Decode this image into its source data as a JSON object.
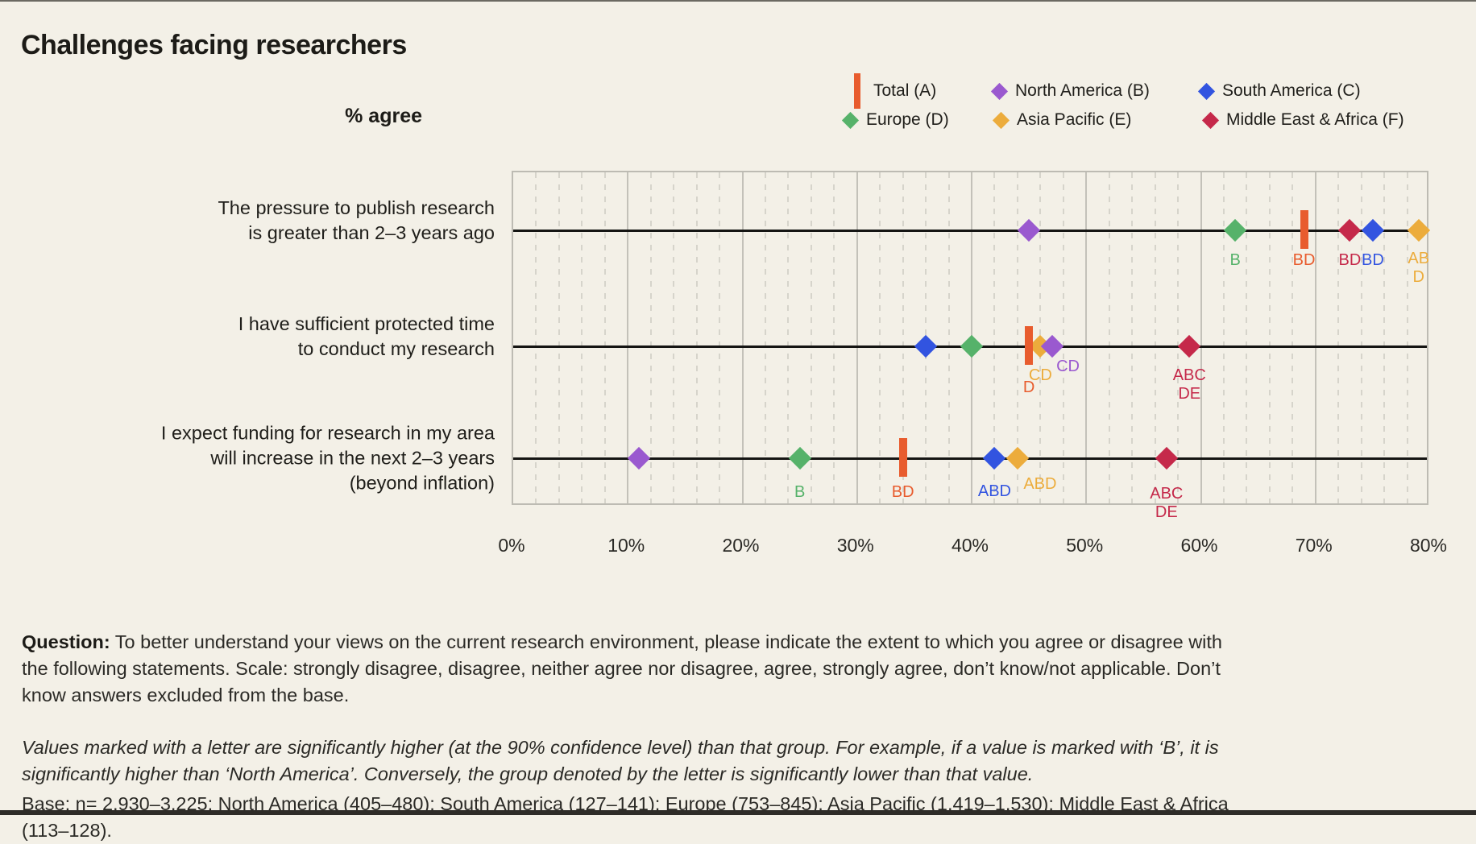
{
  "title": "Challenges facing researchers",
  "axis_label": "% agree",
  "chart_data": {
    "type": "dot_plot",
    "unit": "percent agree",
    "xlim": [
      0,
      80
    ],
    "xticks": [
      "0%",
      "10%",
      "20%",
      "30%",
      "40%",
      "50%",
      "60%",
      "70%",
      "80%"
    ],
    "grid": {
      "solid_every": 10,
      "dashed_every": 2
    },
    "legend_position": "top-right",
    "groups": [
      {
        "id": "A",
        "label": "Total (A)",
        "color": "#e85c2e",
        "marker": "bar"
      },
      {
        "id": "B",
        "label": "North America (B)",
        "color": "#9a59cf",
        "marker": "diamond"
      },
      {
        "id": "C",
        "label": "South America (C)",
        "color": "#3254e0",
        "marker": "diamond"
      },
      {
        "id": "D",
        "label": "Europe (D)",
        "color": "#56b26a",
        "marker": "diamond"
      },
      {
        "id": "E",
        "label": "Asia Pacific (E)",
        "color": "#ecac3c",
        "marker": "diamond"
      },
      {
        "id": "F",
        "label": "Middle East & Africa (F)",
        "color": "#c5294a",
        "marker": "diamond"
      }
    ],
    "rows": [
      {
        "label": "The pressure to publish research\nis greater than 2–3 years ago",
        "points": [
          {
            "group": "B",
            "value": 45
          },
          {
            "group": "D",
            "value": 63,
            "sig": "B",
            "sig_dy": 26
          },
          {
            "group": "A",
            "value": 69,
            "sig": "BD",
            "sig_dy": 26
          },
          {
            "group": "F",
            "value": 73,
            "sig": "BD",
            "sig_dy": 26
          },
          {
            "group": "C",
            "value": 75,
            "sig": "BD",
            "sig_dy": 26
          },
          {
            "group": "E",
            "value": 79,
            "sig": "AB\nD",
            "sig_dy": 24
          }
        ]
      },
      {
        "label": "I have sufficient protected time\nto conduct my research",
        "points": [
          {
            "group": "C",
            "value": 36
          },
          {
            "group": "D",
            "value": 40
          },
          {
            "group": "E",
            "value": 46,
            "sig": "CD",
            "sig_dy": 25
          },
          {
            "group": "B",
            "value": 47,
            "sig": "CD",
            "sig_dx": 20,
            "sig_dy": 14
          },
          {
            "group": "A",
            "value": 45,
            "sig": "D",
            "sig_dy": 40
          },
          {
            "group": "F",
            "value": 59,
            "sig": "ABC\nDE",
            "sig_dy": 25
          }
        ]
      },
      {
        "label": "I expect funding for research in my area\nwill increase in the next 2–3 years\n(beyond inflation)",
        "points": [
          {
            "group": "B",
            "value": 11
          },
          {
            "group": "D",
            "value": 25,
            "sig": "B",
            "sig_dy": 31
          },
          {
            "group": "A",
            "value": 34,
            "sig": "BD",
            "sig_dy": 31
          },
          {
            "group": "C",
            "value": 42,
            "sig": "ABD",
            "sig_dy": 30
          },
          {
            "group": "E",
            "value": 44,
            "sig": "ABD",
            "sig_dx": 28,
            "sig_dy": 21
          },
          {
            "group": "F",
            "value": 57,
            "sig": "ABC\nDE",
            "sig_dy": 33
          }
        ]
      }
    ]
  },
  "footer": {
    "question_label": "Question:",
    "question_text": " To better understand your views on the current research environment, please indicate the extent to which you agree or disagree with the following statements. Scale: strongly disagree, disagree, neither agree nor disagree, agree, strongly agree, don’t know/not applicable. Don’t know answers excluded from the base.",
    "significance_note": "Values marked with a letter are significantly higher (at the 90% confidence level) than that group. For example, if a value is marked with ‘B’, it is significantly higher than ‘North America’. Conversely, the group denoted by the letter is significantly lower than that value.",
    "base_note": "Base: n= 2,930–3,225; North America (405–480); South America (127–141); Europe (753–845); Asia Pacific (1,419–1,530); Middle East & Africa (113–128)."
  }
}
